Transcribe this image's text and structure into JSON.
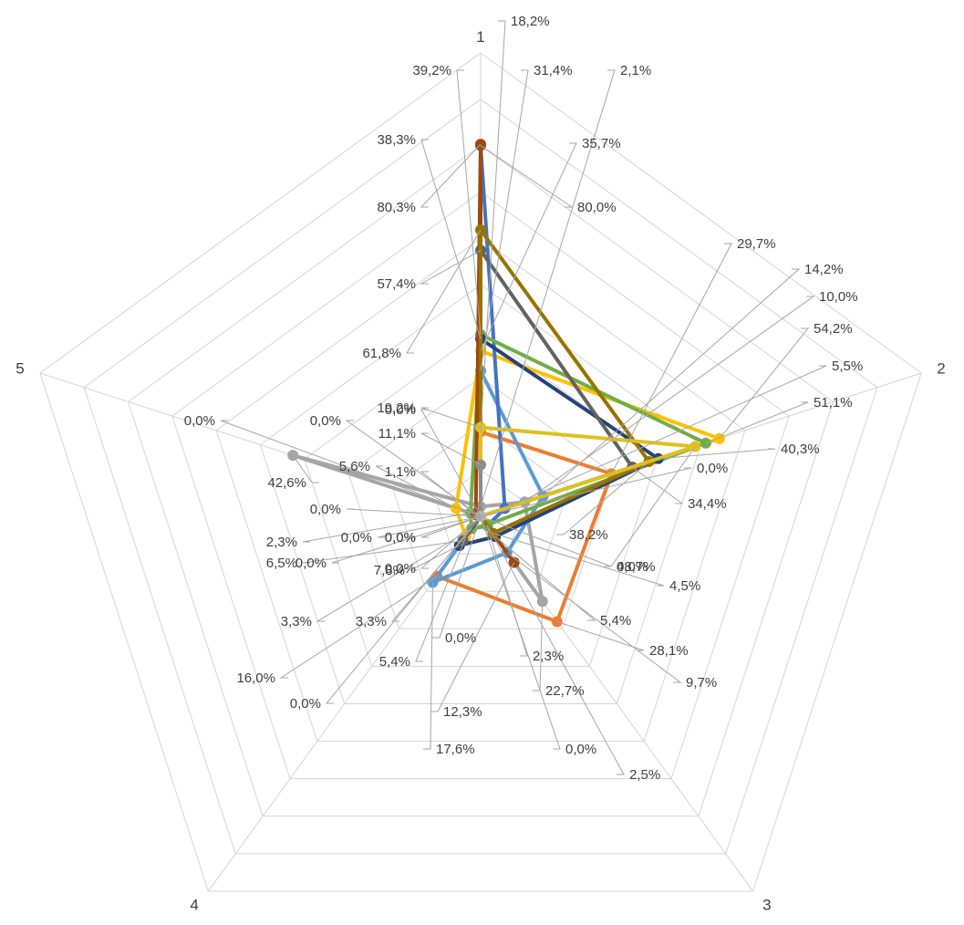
{
  "chart_data": {
    "type": "radar",
    "categories": [
      "1",
      "2",
      "3",
      "4",
      "5"
    ],
    "rmax": 1.0,
    "grid_levels": [
      0.1,
      0.2,
      0.3,
      0.4,
      0.5,
      0.6,
      0.7,
      0.8,
      0.9,
      1.0
    ],
    "grid": true,
    "legend": "none",
    "title": "",
    "series": [
      {
        "color": "#ed7d31",
        "values": [
          0.182,
          0.297,
          0.281,
          0.16,
          0.0
        ],
        "labels": [
          "18,2%",
          "29,7%",
          "28,1%",
          "16,0%",
          "0,0%"
        ]
      },
      {
        "color": "#5b9bd5",
        "values": [
          0.314,
          0.142,
          0.097,
          0.176,
          0.0
        ],
        "labels": [
          "31,4%",
          "14,2%",
          "9,7%",
          "17,6%",
          "0,0%"
        ]
      },
      {
        "color": "#a5a5a5",
        "values": [
          0.021,
          0.1,
          0.227,
          0.0,
          0.426
        ],
        "labels": [
          "2,1%",
          "10,0%",
          "22,7%",
          "0,0%",
          "42,6%"
        ]
      },
      {
        "color": "#ffc000",
        "values": [
          0.357,
          0.542,
          0.0,
          0.054,
          0.056
        ],
        "labels": [
          "35,7%",
          "54,2%",
          "0,0%",
          "5,4%",
          "5,6%"
        ]
      },
      {
        "color": "#4472c4",
        "values": [
          0.8,
          0.055,
          0.025,
          0.033,
          0.0
        ],
        "labels": [
          "80,0%",
          "5,5%",
          "2,5%",
          "3,3%",
          "0,0%"
        ]
      },
      {
        "color": "#70ad47",
        "values": [
          0.392,
          0.511,
          0.023,
          0.033,
          0.023
        ],
        "labels": [
          "39,2%",
          "51,1%",
          "2,3%",
          "3,3%",
          "2,3%"
        ]
      },
      {
        "color": "#264478",
        "values": [
          0.383,
          0.403,
          0.054,
          0.078,
          0.0
        ],
        "labels": [
          "38,3%",
          "40,3%",
          "5,4%",
          "7,8%",
          "0,0%"
        ]
      },
      {
        "color": "#9e480e",
        "values": [
          0.803,
          0.0,
          0.123,
          0.0,
          0.011
        ],
        "labels": [
          "80,3%",
          "0,0%",
          "12,3%",
          "0,0%",
          "1,1%"
        ]
      },
      {
        "color": "#636363",
        "values": [
          0.574,
          0.344,
          0.0,
          0.065,
          0.0
        ],
        "labels": [
          "57,4%",
          "34,4%",
          "0,0%",
          "6,5%",
          "0,0%"
        ]
      },
      {
        "color": "#997300",
        "values": [
          0.618,
          0.382,
          0.045,
          0.0,
          0.0
        ],
        "labels": [
          "61,8%",
          "38,2%",
          "4,5%",
          "0,0%",
          "0,0%"
        ]
      },
      {
        "color": "#e0c020",
        "values": [
          0.192,
          0.487,
          0.0,
          0.0,
          0.0
        ],
        "labels": [
          "19,2%",
          "48,7%",
          "0,0%",
          "",
          ""
        ]
      },
      {
        "color": "#8c8c8c",
        "values": [
          0.111,
          0.0,
          0.0,
          0.0,
          0.0
        ],
        "labels": [
          "11,1%",
          "",
          "",
          "",
          ""
        ]
      },
      {
        "color": "#b4b4b4",
        "values": [
          0.0,
          0.0,
          0.0,
          0.0,
          0.0
        ],
        "labels": [
          "0,0%",
          "",
          "",
          "",
          ""
        ]
      }
    ]
  }
}
